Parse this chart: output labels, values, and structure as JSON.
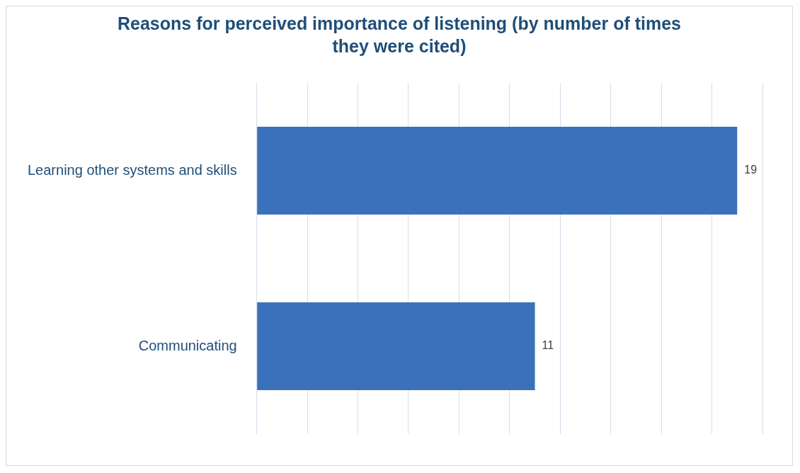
{
  "chart_data": {
    "type": "bar",
    "orientation": "horizontal",
    "title": "Reasons for perceived importance of listening (by number of times they were cited)",
    "categories": [
      "Learning other systems and skills",
      "Communicating"
    ],
    "values": [
      19,
      11
    ],
    "color": "#3b71ba",
    "xlim": [
      0,
      20
    ],
    "xticks": [
      {
        "value": 0,
        "label": null
      },
      {
        "value": 2,
        "label": null
      },
      {
        "value": 4,
        "label": null
      },
      {
        "value": 6,
        "label": null
      },
      {
        "value": 8,
        "label": null
      },
      {
        "value": 10,
        "label": null
      },
      {
        "value": 12,
        "label": null
      },
      {
        "value": 14,
        "label": null
      },
      {
        "value": 16,
        "label": null
      },
      {
        "value": 18,
        "label": null
      },
      {
        "value": 20,
        "label": null
      }
    ],
    "grid": "x",
    "tick_labels": "y",
    "data_labels": true,
    "legend": false
  }
}
